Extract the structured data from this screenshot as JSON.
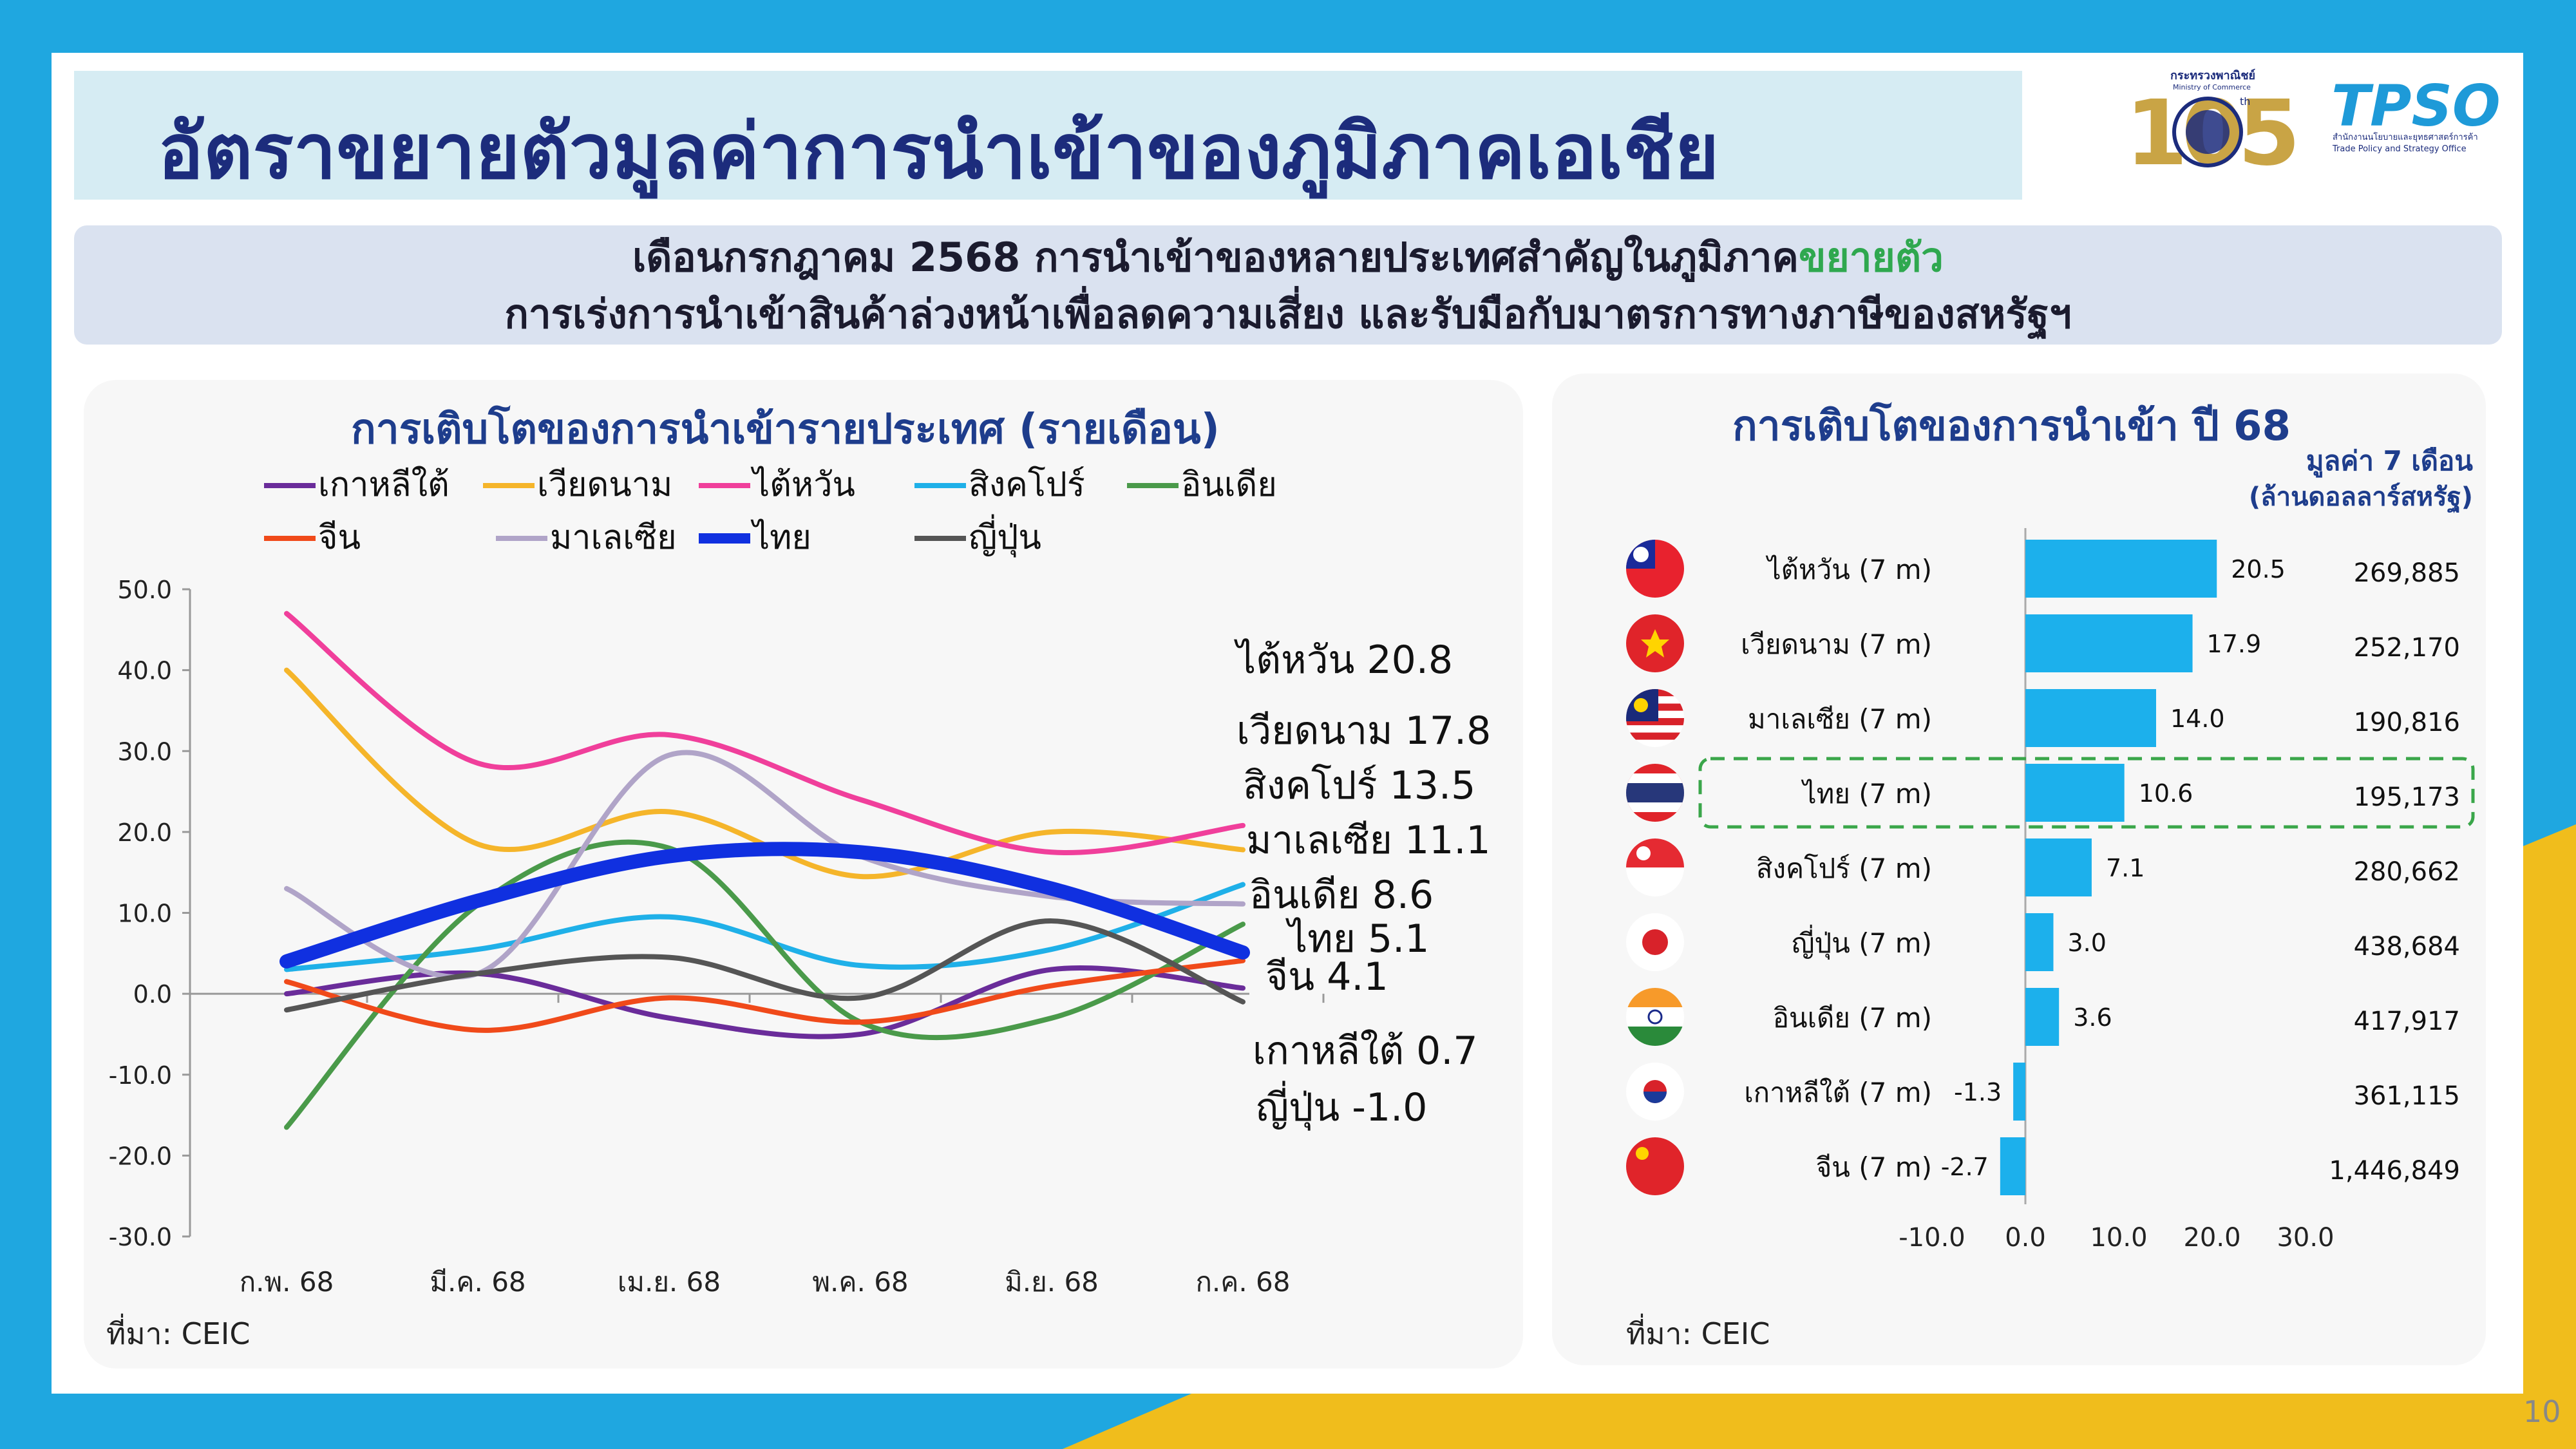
{
  "header": {
    "title": "อัตราขยายตัวมูลค่าการนำเข้าของภูมิภาคเอเชีย",
    "ministry_th": "กระทรวงพาณิชย์",
    "ministry_en": "Ministry of Commerce",
    "logo_anniv": "105",
    "logo_anniv_sup": "th",
    "tpso": "TPSO",
    "tpso_th": "สำนักงานนโยบายและยุทธศาสตร์การค้า",
    "tpso_en": "Trade Policy and Strategy Office"
  },
  "subtitle": {
    "line1_prefix": "เดือนกรกฎาคม 2568 การนำเข้าของหลายประเทศสำคัญในภูมิภาค",
    "line1_highlight": "ขยายตัว",
    "line2": "การเร่งการนำเข้าสินค้าล่วงหน้าเพื่อลดความเสี่ยง และรับมือกับมาตรการทางภาษีของสหรัฐฯ"
  },
  "colors": {
    "title_navy": "#1c2c7c",
    "accent_blue": "#1fa7e0",
    "accent_yellow": "#f0bd1c",
    "green_highlight": "#2fa84f"
  },
  "left_panel": {
    "title": "การเติบโตของการนำเข้ารายประเทศ (รายเดือน)",
    "source": "ที่มา: CEIC"
  },
  "right_panel": {
    "title": "การเติบโตของการนำเข้า ปี 68",
    "value_header_line1": "มูลค่า 7 เดือน",
    "value_header_line2": "(ล้านดอลลาร์สหรัฐ)",
    "source": "ที่มา: CEIC"
  },
  "page_number": "10",
  "chart_data": [
    {
      "type": "line",
      "title": "การเติบโตของการนำเข้ารายประเทศ (รายเดือน)",
      "categories": [
        "ก.พ. 68",
        "มี.ค. 68",
        "เม.ย. 68",
        "พ.ค. 68",
        "มิ.ย. 68",
        "ก.ค. 68"
      ],
      "ylim": [
        -30,
        50
      ],
      "yticks": [
        50,
        40,
        30,
        20,
        10,
        0,
        -10,
        -20,
        -30
      ],
      "ytick_labels": [
        "50.0",
        "40.0",
        "30.0",
        "20.0",
        "10.0",
        "0.0",
        "-10.0",
        "-20.0",
        "-30.0"
      ],
      "series": [
        {
          "name": "เกาหลีใต้",
          "color": "#6a2c9a",
          "width": 8,
          "values": [
            0.0,
            2.5,
            -3.0,
            -5.0,
            3.0,
            0.7
          ]
        },
        {
          "name": "เวียดนาม",
          "color": "#f5b52a",
          "width": 8,
          "values": [
            40.0,
            18.5,
            22.5,
            14.5,
            20.0,
            17.8
          ]
        },
        {
          "name": "ไต้หวัน",
          "color": "#f03f9b",
          "width": 8,
          "values": [
            47.0,
            28.5,
            32.0,
            24.0,
            17.5,
            20.8
          ]
        },
        {
          "name": "สิงคโปร์",
          "color": "#1fb0e8",
          "width": 8,
          "values": [
            3.0,
            5.5,
            9.5,
            3.5,
            5.5,
            13.5
          ]
        },
        {
          "name": "อินเดีย",
          "color": "#4a9a4a",
          "width": 8,
          "values": [
            -16.5,
            11.0,
            18.0,
            -3.5,
            -3.0,
            8.6
          ]
        },
        {
          "name": "จีน",
          "color": "#f04a1a",
          "width": 8,
          "values": [
            1.5,
            -4.5,
            -0.5,
            -3.5,
            1.0,
            4.1
          ]
        },
        {
          "name": "มาเลเซีย",
          "color": "#b0a4c8",
          "width": 8,
          "values": [
            13.0,
            2.5,
            29.5,
            17.0,
            12.0,
            11.1
          ]
        },
        {
          "name": "ไทย",
          "color": "#1030e0",
          "width": 22,
          "values": [
            4.0,
            11.5,
            17.0,
            17.5,
            13.0,
            5.1
          ]
        },
        {
          "name": "ญี่ปุ่น",
          "color": "#555555",
          "width": 8,
          "values": [
            -2.0,
            2.5,
            4.5,
            -0.5,
            9.0,
            -1.0
          ]
        }
      ],
      "end_labels": [
        {
          "name": "ไต้หวัน",
          "value": "20.8",
          "text": "ไต้หวัน 20.8"
        },
        {
          "name": "เวียดนาม",
          "value": "17.8",
          "text": "เวียดนาม 17.8"
        },
        {
          "name": "สิงคโปร์",
          "value": "13.5",
          "text": "สิงคโปร์ 13.5"
        },
        {
          "name": "มาเลเซีย",
          "value": "11.1",
          "text": "มาเลเซีย 11.1"
        },
        {
          "name": "อินเดีย",
          "value": "8.6",
          "text": "อินเดีย 8.6"
        },
        {
          "name": "ไทย",
          "value": "5.1",
          "text": "ไทย 5.1"
        },
        {
          "name": "จีน",
          "value": "4.1",
          "text": "จีน 4.1"
        },
        {
          "name": "เกาหลีใต้",
          "value": "0.7",
          "text": "เกาหลีใต้ 0.7"
        },
        {
          "name": "ญี่ปุ่น",
          "value": "-1.0",
          "text": "ญี่ปุ่น -1.0"
        }
      ],
      "legend_position": "top"
    },
    {
      "type": "bar",
      "orientation": "horizontal",
      "title": "การเติบโตของการนำเข้า ปี 68",
      "xlim": [
        -10,
        30
      ],
      "xticks": [
        -10,
        0,
        10,
        20,
        30
      ],
      "xtick_labels": [
        "-10.0",
        "0.0",
        "10.0",
        "20.0",
        "30.0"
      ],
      "bar_color": "#1cb0ec",
      "rows": [
        {
          "label": "ไต้หวัน (7 m)",
          "flag": "taiwan-flag",
          "growth": 20.5,
          "growth_label": "20.5",
          "value_label": "269,885"
        },
        {
          "label": "เวียดนาม (7 m)",
          "flag": "vietnam-flag",
          "growth": 17.9,
          "growth_label": "17.9",
          "value_label": "252,170"
        },
        {
          "label": "มาเลเซีย (7 m)",
          "flag": "malaysia-flag",
          "growth": 14.0,
          "growth_label": "14.0",
          "value_label": "190,816"
        },
        {
          "label": "ไทย (7 m)",
          "flag": "thailand-flag",
          "growth": 10.6,
          "growth_label": "10.6",
          "value_label": "195,173",
          "highlight": true
        },
        {
          "label": "สิงคโปร์ (7 m)",
          "flag": "singapore-flag",
          "growth": 7.1,
          "growth_label": "7.1",
          "value_label": "280,662"
        },
        {
          "label": "ญี่ปุ่น (7 m)",
          "flag": "japan-flag",
          "growth": 3.0,
          "growth_label": "3.0",
          "value_label": "438,684"
        },
        {
          "label": "อินเดีย (7 m)",
          "flag": "india-flag",
          "growth": 3.6,
          "growth_label": "3.6",
          "value_label": "417,917"
        },
        {
          "label": "เกาหลีใต้ (7 m)",
          "flag": "korea-flag",
          "growth": -1.3,
          "growth_label": "-1.3",
          "value_label": "361,115"
        },
        {
          "label": "จีน (7 m)",
          "flag": "china-flag",
          "growth": -2.7,
          "growth_label": "-2.7",
          "value_label": "1,446,849"
        }
      ]
    }
  ]
}
